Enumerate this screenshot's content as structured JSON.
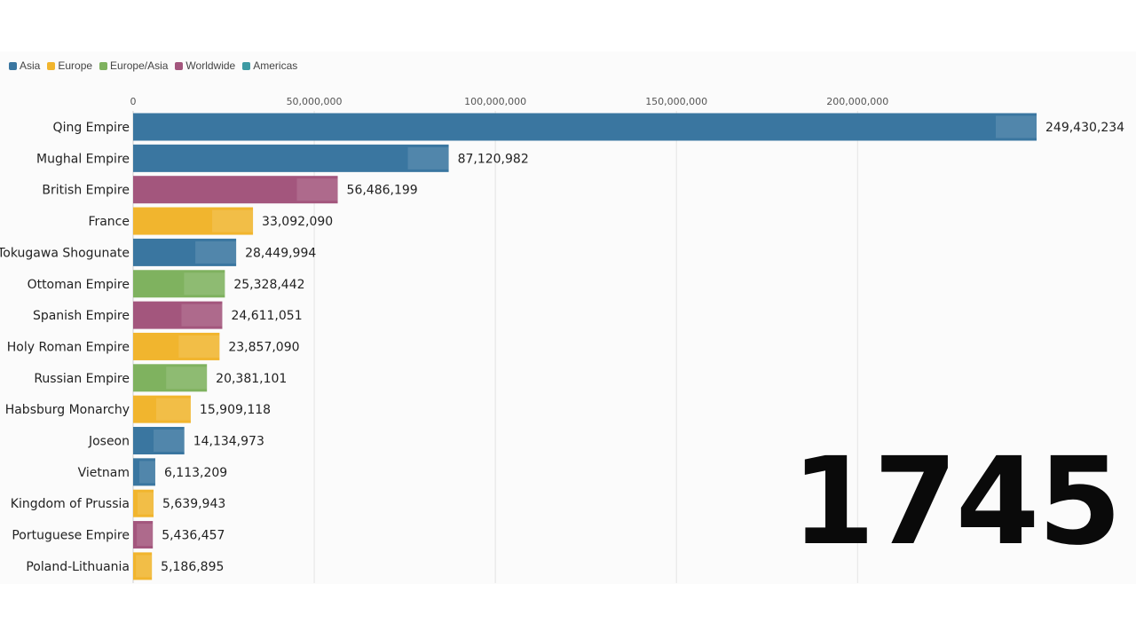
{
  "colors": {
    "Asia": "#3a76a0",
    "Europe": "#f1b52e",
    "Europe/Asia": "#7fb25f",
    "Worldwide": "#a3567d",
    "Americas": "#3d9aa3"
  },
  "legend": [
    {
      "label": "Asia",
      "color": "#3a76a0"
    },
    {
      "label": "Europe",
      "color": "#f1b52e"
    },
    {
      "label": "Europe/Asia",
      "color": "#7fb25f"
    },
    {
      "label": "Worldwide",
      "color": "#a3567d"
    },
    {
      "label": "Americas",
      "color": "#3d9aa3"
    }
  ],
  "year": "1745",
  "chart_data": {
    "type": "bar",
    "orientation": "horizontal",
    "title": "",
    "xlabel": "",
    "ylabel": "",
    "xlim": [
      0,
      250000000
    ],
    "x_ticks": [
      0,
      50000000,
      100000000,
      150000000,
      200000000
    ],
    "x_tick_labels": [
      "0",
      "50,000,000",
      "100,000,000",
      "150,000,000",
      "200,000,000"
    ],
    "grid": true,
    "legend_position": "top-left",
    "categories": [
      "Qing Empire",
      "Mughal Empire",
      "British Empire",
      "France",
      "Tokugawa Shogunate",
      "Ottoman Empire",
      "Spanish Empire",
      "Holy Roman Empire",
      "Russian Empire",
      "Habsburg Monarchy",
      "Joseon",
      "Vietnam",
      "Kingdom of Prussia",
      "Portuguese Empire",
      "Poland-Lithuania"
    ],
    "values": [
      249430234,
      87120982,
      56486199,
      33092090,
      28449994,
      25328442,
      24611051,
      23857090,
      20381101,
      15909118,
      14134973,
      6113209,
      5639943,
      5436457,
      5186895
    ],
    "value_labels": [
      "249,430,234",
      "87,120,982",
      "56,486,199",
      "33,092,090",
      "28,449,994",
      "25,328,442",
      "24,611,051",
      "23,857,090",
      "20,381,101",
      "15,909,118",
      "14,134,973",
      "6,113,209",
      "5,639,943",
      "5,436,457",
      "5,186,895"
    ],
    "region": [
      "Asia",
      "Asia",
      "Worldwide",
      "Europe",
      "Asia",
      "Europe/Asia",
      "Worldwide",
      "Europe",
      "Europe/Asia",
      "Europe",
      "Asia",
      "Asia",
      "Europe",
      "Worldwide",
      "Europe"
    ]
  }
}
